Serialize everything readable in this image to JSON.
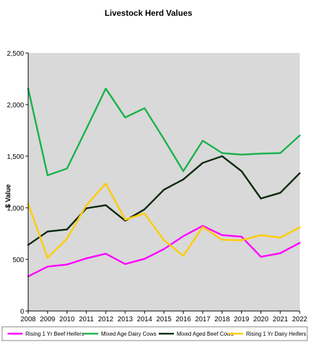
{
  "chart_data": {
    "type": "line",
    "title": "Livestock Herd Values",
    "ylabel": "$ Value",
    "xlabel": "",
    "x": [
      2008,
      2009,
      2010,
      2011,
      2012,
      2013,
      2014,
      2015,
      2016,
      2017,
      2018,
      2019,
      2020,
      2021,
      2022
    ],
    "x_tick_labels": [
      "2008",
      "2009",
      "2010",
      "2011",
      "2012",
      "2013",
      "2014",
      "2015",
      "2016",
      "2017",
      "2018",
      "2019",
      "2020",
      "2021",
      "2022"
    ],
    "ylim": [
      0,
      2500
    ],
    "y_ticks": [
      0,
      500,
      1000,
      1500,
      2000,
      2500
    ],
    "y_tick_labels": [
      "0",
      "500",
      "1,000",
      "1,500",
      "2,000",
      "2,500"
    ],
    "grid": false,
    "plot_background": "#d9d9d9",
    "legend_position": "bottom",
    "series": [
      {
        "name": "Rising 1 Yr Beef Heifers",
        "color": "#ff00ff",
        "values": [
          335,
          430,
          450,
          510,
          555,
          455,
          505,
          600,
          725,
          825,
          735,
          720,
          525,
          560,
          660
        ]
      },
      {
        "name": "Mixed Age Dairy Cows",
        "color": "#19b24b",
        "values": [
          2155,
          1315,
          1380,
          1765,
          2155,
          1875,
          1965,
          1665,
          1355,
          1650,
          1530,
          1515,
          1525,
          1530,
          1700
        ]
      },
      {
        "name": "Mixed Aged Beef Cows",
        "color": "#0d2a0d",
        "values": [
          640,
          770,
          790,
          995,
          1025,
          875,
          985,
          1175,
          1275,
          1435,
          1500,
          1355,
          1090,
          1145,
          1335
        ]
      },
      {
        "name": "Rising 1 Yr Dairy Heifers",
        "color": "#ffcc00",
        "values": [
          1040,
          515,
          700,
          1025,
          1235,
          885,
          945,
          685,
          535,
          815,
          690,
          685,
          735,
          710,
          810
        ]
      }
    ]
  }
}
